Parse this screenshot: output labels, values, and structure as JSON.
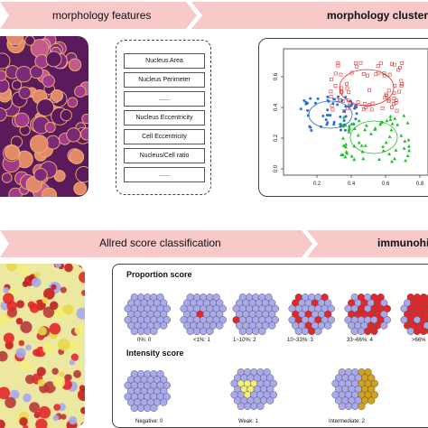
{
  "banner_top": {
    "left_label": "morphology features",
    "right_label": "morphology cluster"
  },
  "features": [
    "Nucleus Area",
    "Nucleus Perimeter",
    ".......",
    "Nucleus Eccentricity",
    "Cell Eccentricity",
    "Nucleus/Cell ratio",
    "......."
  ],
  "scatter": {
    "x_ticks": [
      "0.2",
      "0.4",
      "0.6",
      "0.8"
    ],
    "y_ticks": [
      "0.0",
      "0.2",
      "0.4",
      "0.6"
    ],
    "colors": {
      "red": "#e03030",
      "blue": "#2a6fd6",
      "green": "#1fbf2a"
    }
  },
  "banner_bottom": {
    "left_label": "Allred score classification",
    "right_label": "immunohi"
  },
  "proportion": {
    "title": "Proportion score",
    "labels": [
      "0%: 0",
      "<1%: 1",
      "1~10%: 2",
      "10~33%: 3",
      "33~66%: 4",
      ">66%"
    ]
  },
  "intensity": {
    "title": "Intensity score",
    "labels": [
      "Negative: 0",
      "Weak: 1",
      "Intermediate: 2"
    ]
  },
  "colors": {
    "banner": "#f7c9c9",
    "banner_dark": "#f2b0b0",
    "cell_blue": "#a9a9ee",
    "cell_red": "#e3262a",
    "cell_yellow": "#f3ef7a",
    "cell_brown": "#d2a21e"
  }
}
